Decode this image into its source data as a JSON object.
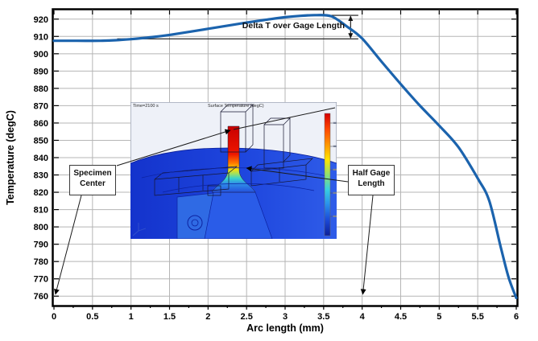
{
  "chart_data": {
    "type": "line",
    "xlabel": "Arc length (mm)",
    "ylabel": "Temperature (degC)",
    "xlim": [
      0,
      6
    ],
    "ylim": [
      755,
      925
    ],
    "grid": true,
    "grid_color": "#b5b5b5",
    "x_minor_step": 0.25,
    "xticks": [
      0,
      0.5,
      1,
      1.5,
      2,
      2.5,
      3,
      3.5,
      4,
      4.5,
      5,
      5.5,
      6
    ],
    "xtick_labels": [
      "0",
      "0.5",
      "1",
      "1.5",
      "2",
      "2.5",
      "3",
      "3.5",
      "4",
      "4.5",
      "5",
      "5.5",
      "6"
    ],
    "yticks": [
      760,
      770,
      780,
      790,
      800,
      810,
      820,
      830,
      840,
      850,
      860,
      870,
      880,
      890,
      900,
      910,
      920
    ],
    "ytick_labels": [
      "760",
      "770",
      "780",
      "790",
      "800",
      "810",
      "820",
      "830",
      "840",
      "850",
      "860",
      "870",
      "880",
      "890",
      "900",
      "910",
      "920"
    ],
    "series": [
      {
        "name": "surface temperature along arc length",
        "color": "#1b63ad",
        "x": [
          0,
          0.3,
          0.6,
          0.8,
          1.0,
          1.25,
          1.5,
          1.75,
          2.0,
          2.25,
          2.5,
          2.75,
          3.0,
          3.2,
          3.4,
          3.6,
          3.8,
          4.0,
          4.25,
          4.5,
          4.75,
          5.0,
          5.25,
          5.5,
          5.65,
          5.8,
          5.9,
          6.0
        ],
        "y": [
          907.5,
          907.5,
          907.5,
          907.8,
          908.4,
          909.5,
          910.9,
          912.6,
          914.4,
          916.2,
          918.0,
          919.6,
          921.1,
          921.9,
          922.3,
          921.6,
          915.8,
          908.8,
          895.5,
          882.5,
          870.0,
          858.5,
          846.0,
          828.0,
          815.0,
          788.0,
          771.0,
          759.0
        ]
      }
    ],
    "annotations": {
      "dimension": {
        "label": "Delta T over Gage Length",
        "x1": 0.82,
        "x2": 3.95,
        "x_top1": 3.4,
        "y_bottom": 908.6,
        "y_top": 922.2,
        "arrow_x": 3.85
      },
      "callouts": {
        "specimen_center": {
          "line1": "Specimen",
          "line2": "Center",
          "points_to_x": 0
        },
        "half_gage_length": {
          "line1": "Half Gage",
          "line2": "Length",
          "points_to_x": 4
        }
      }
    }
  },
  "inset": {
    "time_label": "Time=2100 s",
    "title": "Surface Temperature (degC)"
  }
}
